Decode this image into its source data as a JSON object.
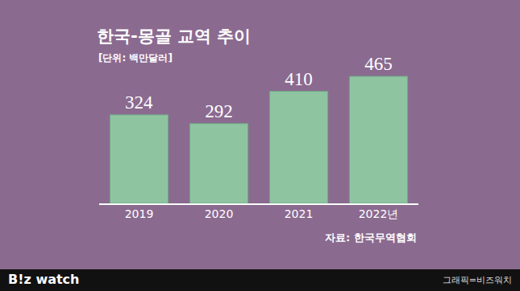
{
  "chart_data": {
    "type": "bar",
    "title": "한국-몽골 교역 추이",
    "subtitle": "[단위: 백만달러]",
    "source": "자료: 한국무역협회",
    "categories": [
      "2019",
      "2020",
      "2021",
      "2022년"
    ],
    "values": [
      324,
      292,
      410,
      465
    ],
    "color": "#8fc4a0",
    "ylim": [
      0,
      500
    ],
    "tick_labels": "x",
    "data_labels": true,
    "grid": false
  },
  "footer": {
    "brand": "B!z watch",
    "credit": "그래픽=비즈워치"
  }
}
